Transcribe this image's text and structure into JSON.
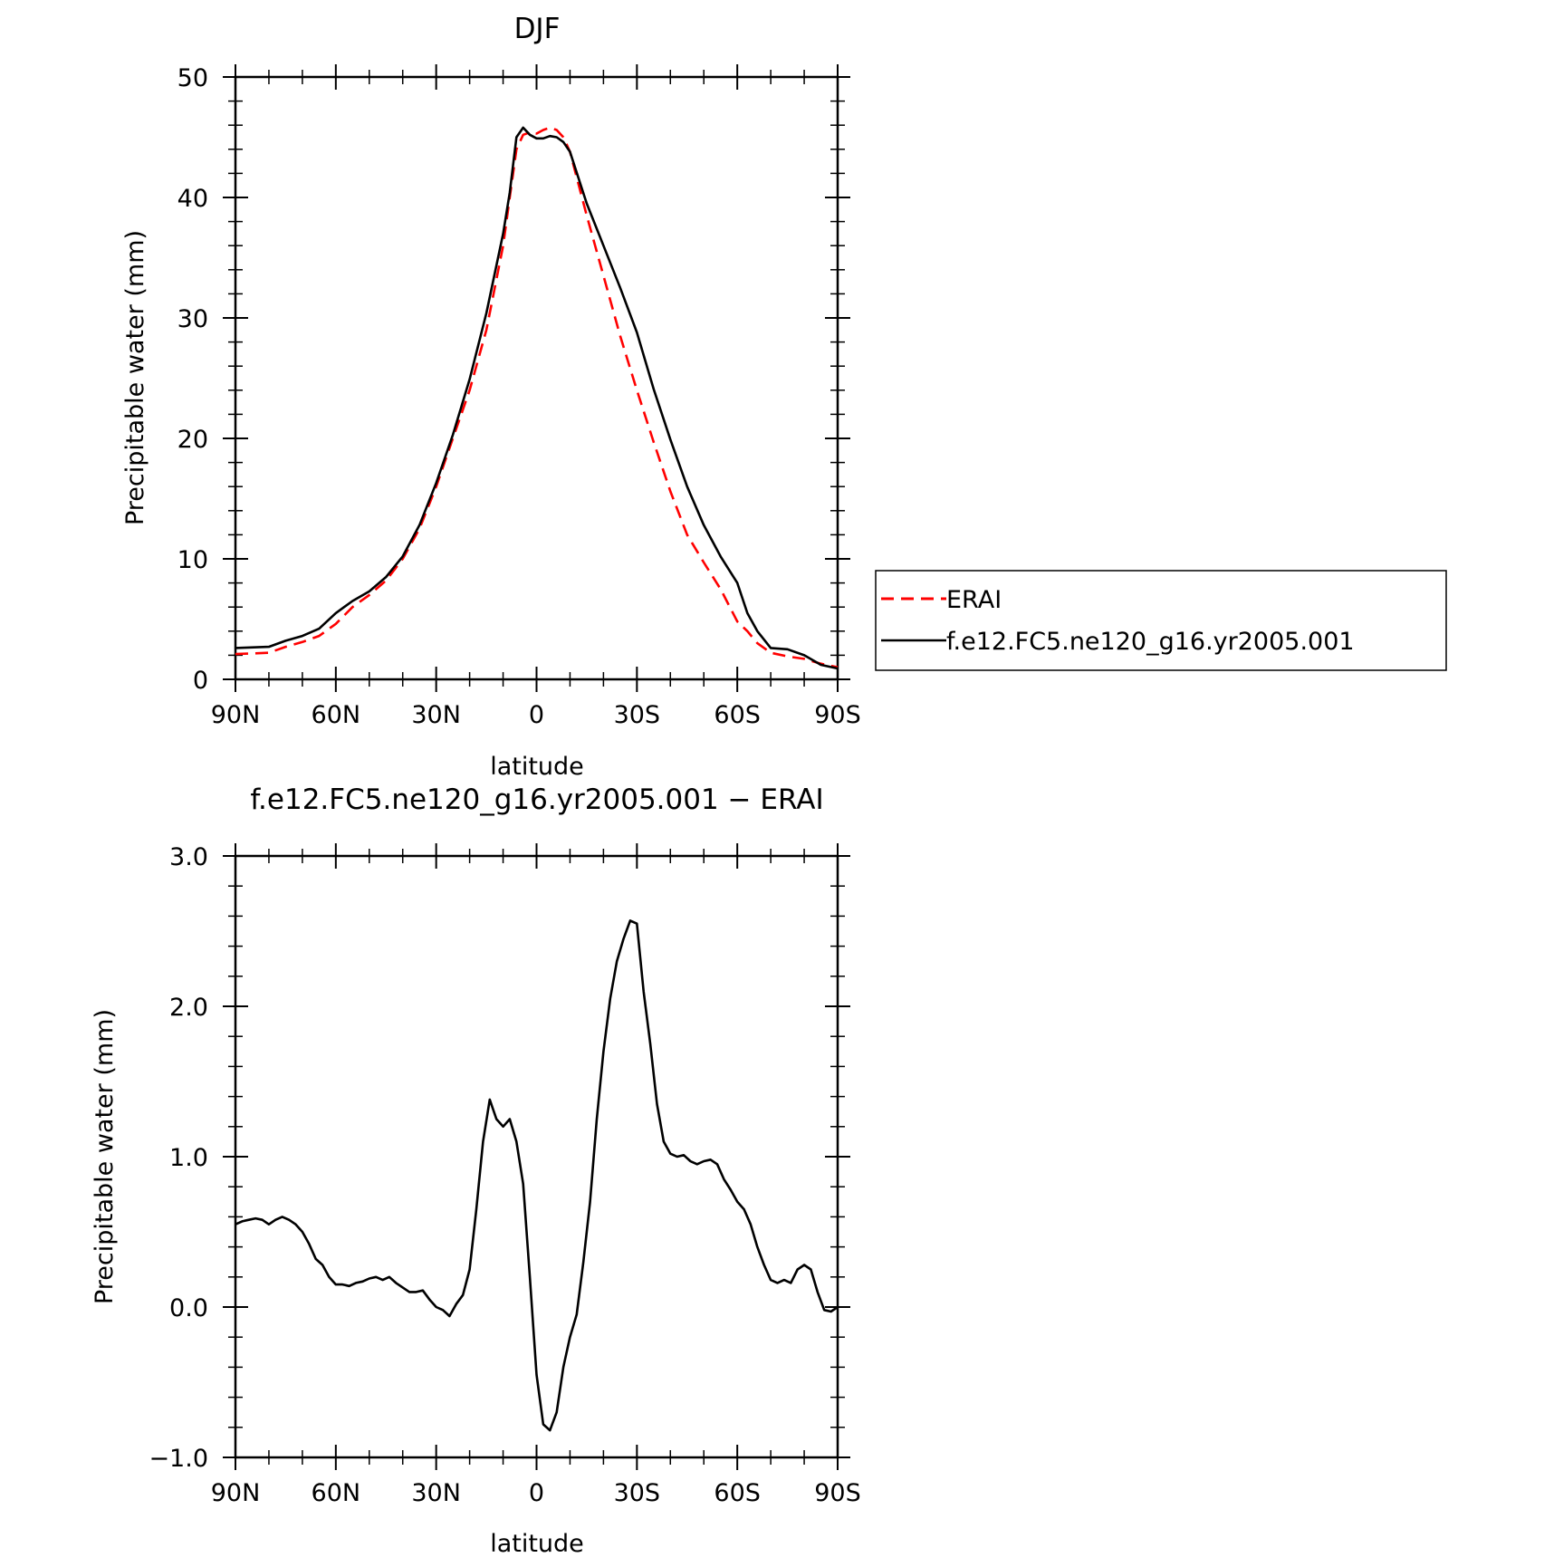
{
  "chart_data": [
    {
      "type": "line",
      "title": "DJF",
      "xlabel": "latitude",
      "ylabel": "Precipitable water (mm)",
      "xlim": [
        90,
        -90
      ],
      "ylim": [
        0,
        50
      ],
      "x_ticks": [
        {
          "value": 90,
          "label": "90N"
        },
        {
          "value": 60,
          "label": "60N"
        },
        {
          "value": 30,
          "label": "30N"
        },
        {
          "value": 0,
          "label": "0"
        },
        {
          "value": -30,
          "label": "30S"
        },
        {
          "value": -60,
          "label": "60S"
        },
        {
          "value": -90,
          "label": "90S"
        }
      ],
      "y_ticks": [
        {
          "value": 0,
          "label": "0"
        },
        {
          "value": 10,
          "label": "10"
        },
        {
          "value": 20,
          "label": "20"
        },
        {
          "value": 30,
          "label": "30"
        },
        {
          "value": 40,
          "label": "40"
        },
        {
          "value": 50,
          "label": "50"
        }
      ],
      "legend_position": "right",
      "series": [
        {
          "name": "ERAI",
          "color": "#ff0000",
          "dash": "dashed",
          "x": [
            90,
            80,
            75,
            70,
            65,
            60,
            55,
            50,
            45,
            40,
            35,
            30,
            25,
            20,
            15,
            10,
            8,
            6,
            4,
            2,
            0,
            -2,
            -4,
            -6,
            -8,
            -10,
            -15,
            -20,
            -25,
            -30,
            -35,
            -40,
            -45,
            -50,
            -55,
            -60,
            -63,
            -66,
            -70,
            -75,
            -80,
            -85,
            -90
          ],
          "y": [
            2.1,
            2.2,
            2.7,
            3.1,
            3.6,
            4.6,
            6.0,
            7.0,
            8.2,
            10.0,
            12.5,
            16.0,
            20.0,
            24.0,
            29.0,
            36.0,
            40.0,
            44.0,
            45.2,
            45.4,
            45.3,
            45.6,
            45.8,
            45.6,
            45.0,
            43.8,
            38.5,
            33.5,
            28.5,
            24.0,
            19.7,
            15.6,
            12.0,
            9.7,
            7.5,
            4.8,
            4.0,
            3.0,
            2.2,
            1.9,
            1.7,
            1.3,
            1.0
          ]
        },
        {
          "name": "f.e12.FC5.ne120_g16.yr2005.001",
          "color": "#000000",
          "dash": "solid",
          "x": [
            90,
            80,
            75,
            70,
            65,
            60,
            55,
            50,
            45,
            40,
            35,
            30,
            25,
            20,
            15,
            10,
            8,
            6,
            4,
            2,
            0,
            -2,
            -4,
            -6,
            -8,
            -10,
            -15,
            -20,
            -25,
            -30,
            -35,
            -40,
            -45,
            -50,
            -55,
            -60,
            -63,
            -66,
            -70,
            -75,
            -80,
            -85,
            -90
          ],
          "y": [
            2.6,
            2.7,
            3.2,
            3.6,
            4.2,
            5.5,
            6.5,
            7.3,
            8.5,
            10.2,
            12.8,
            16.3,
            20.3,
            24.9,
            30.4,
            37.0,
            40.4,
            45.0,
            45.8,
            45.2,
            44.9,
            44.9,
            45.1,
            45.0,
            44.6,
            43.8,
            39.5,
            36.0,
            32.5,
            28.8,
            24.1,
            19.9,
            16.0,
            12.8,
            10.2,
            8.0,
            5.5,
            4.0,
            2.6,
            2.5,
            2.0,
            1.2,
            0.9
          ]
        }
      ]
    },
    {
      "type": "line",
      "title": "f.e12.FC5.ne120_g16.yr2005.001 − ERAI",
      "xlabel": "latitude",
      "ylabel": "Precipitable water (mm)",
      "xlim": [
        90,
        -90
      ],
      "ylim": [
        -1.0,
        3.0
      ],
      "x_ticks": [
        {
          "value": 90,
          "label": "90N"
        },
        {
          "value": 60,
          "label": "60N"
        },
        {
          "value": 30,
          "label": "30N"
        },
        {
          "value": 0,
          "label": "0"
        },
        {
          "value": -30,
          "label": "30S"
        },
        {
          "value": -60,
          "label": "60S"
        },
        {
          "value": -90,
          "label": "90S"
        }
      ],
      "y_ticks": [
        {
          "value": -1.0,
          "label": "−1.0"
        },
        {
          "value": 0.0,
          "label": "0.0"
        },
        {
          "value": 1.0,
          "label": "1.0"
        },
        {
          "value": 2.0,
          "label": "2.0"
        },
        {
          "value": 3.0,
          "label": "3.0"
        }
      ],
      "series": [
        {
          "color": "#000000",
          "dash": "solid",
          "x": [
            90,
            88,
            86,
            84,
            82,
            80,
            78,
            76,
            74,
            72,
            70,
            68,
            66,
            64,
            62,
            60,
            58,
            56,
            54,
            52,
            50,
            48,
            46,
            44,
            42,
            40,
            38,
            36,
            34,
            32,
            30,
            28,
            26,
            24,
            22,
            20,
            18,
            16,
            14,
            12,
            10,
            8,
            6,
            4,
            2,
            0,
            -2,
            -4,
            -6,
            -8,
            -10,
            -12,
            -14,
            -16,
            -18,
            -20,
            -22,
            -24,
            -26,
            -28,
            -30,
            -32,
            -34,
            -36,
            -38,
            -40,
            -42,
            -44,
            -46,
            -48,
            -50,
            -52,
            -54,
            -56,
            -58,
            -60,
            -62,
            -64,
            -66,
            -68,
            -70,
            -72,
            -74,
            -76,
            -78,
            -80,
            -82,
            -84,
            -86,
            -88,
            -90
          ],
          "y": [
            0.55,
            0.57,
            0.58,
            0.59,
            0.58,
            0.55,
            0.58,
            0.6,
            0.58,
            0.55,
            0.5,
            0.42,
            0.32,
            0.28,
            0.2,
            0.15,
            0.15,
            0.14,
            0.16,
            0.17,
            0.19,
            0.2,
            0.18,
            0.2,
            0.16,
            0.13,
            0.1,
            0.1,
            0.11,
            0.05,
            0.0,
            -0.02,
            -0.06,
            0.02,
            0.08,
            0.25,
            0.65,
            1.1,
            1.38,
            1.25,
            1.2,
            1.25,
            1.1,
            0.82,
            0.2,
            -0.45,
            -0.78,
            -0.82,
            -0.7,
            -0.4,
            -0.2,
            -0.05,
            0.3,
            0.7,
            1.25,
            1.7,
            2.05,
            2.3,
            2.45,
            2.57,
            2.55,
            2.1,
            1.75,
            1.35,
            1.1,
            1.02,
            1.0,
            1.01,
            0.97,
            0.95,
            0.97,
            0.98,
            0.95,
            0.85,
            0.78,
            0.7,
            0.65,
            0.55,
            0.4,
            0.28,
            0.18,
            0.16,
            0.18,
            0.16,
            0.25,
            0.28,
            0.25,
            0.1,
            -0.02,
            -0.03,
            0.0
          ]
        }
      ]
    }
  ]
}
